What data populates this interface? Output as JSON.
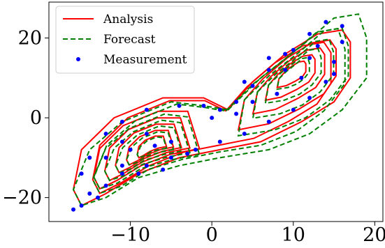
{
  "chart_data": {
    "type": "line",
    "title": "",
    "xlabel": "",
    "ylabel": "",
    "xlim": [
      -20,
      21
    ],
    "ylim": [
      -26,
      29
    ],
    "xticks": [
      -10,
      0,
      10,
      20
    ],
    "yticks": [
      -20,
      0,
      20
    ],
    "xtick_labels": [
      "−10",
      "0",
      "10",
      "20"
    ],
    "ytick_labels": [
      "−20",
      "0",
      "20"
    ],
    "grid": false,
    "legend_position": "top-left",
    "series": [
      {
        "name": "Analysis",
        "style": "solid-line",
        "color": "#ff0000",
        "outer_loop": [
          [
            2,
            2
          ],
          [
            5,
            9
          ],
          [
            9,
            16
          ],
          [
            13,
            21
          ],
          [
            16,
            22
          ],
          [
            17,
            19
          ],
          [
            17,
            10
          ],
          [
            15,
            4
          ],
          [
            11,
            -1
          ],
          [
            6,
            -6
          ],
          [
            1,
            -8
          ],
          [
            -4,
            -10
          ],
          [
            -9,
            -14
          ],
          [
            -13,
            -19
          ],
          [
            -16,
            -22
          ],
          [
            -17,
            -18
          ],
          [
            -16,
            -8
          ],
          [
            -12,
            0
          ],
          [
            -6,
            5
          ],
          [
            -1,
            5
          ],
          [
            2,
            2
          ]
        ]
      },
      {
        "name": "Forecast",
        "style": "dashed-line",
        "color": "#008000",
        "outer_loop": [
          [
            2,
            2
          ],
          [
            6,
            10
          ],
          [
            11,
            18
          ],
          [
            15,
            25
          ],
          [
            18,
            26
          ],
          [
            19,
            20
          ],
          [
            19,
            10
          ],
          [
            16,
            2
          ],
          [
            12,
            -4
          ],
          [
            7,
            -8
          ],
          [
            1,
            -10
          ],
          [
            -4,
            -12
          ],
          [
            -9,
            -15
          ],
          [
            -13,
            -20
          ],
          [
            -16,
            -22
          ],
          [
            -17,
            -18
          ],
          [
            -15,
            -8
          ],
          [
            -11,
            -1
          ],
          [
            -5,
            4
          ],
          [
            -1,
            3
          ],
          [
            2,
            2
          ]
        ]
      },
      {
        "name": "Measurement",
        "style": "markers",
        "color": "#0000ff",
        "points": [
          [
            -17,
            -23
          ],
          [
            -16,
            -22
          ],
          [
            -15,
            -19
          ],
          [
            -16,
            -14
          ],
          [
            -15,
            -10
          ],
          [
            -13,
            -4
          ],
          [
            -11,
            -1
          ],
          [
            -8,
            2
          ],
          [
            -4,
            3
          ],
          [
            -1,
            3
          ],
          [
            1,
            2
          ],
          [
            3,
            4
          ],
          [
            5,
            8
          ],
          [
            7,
            12
          ],
          [
            9,
            16
          ],
          [
            12,
            21
          ],
          [
            14,
            24
          ],
          [
            16,
            23
          ],
          [
            16,
            19
          ],
          [
            15,
            14
          ],
          [
            14,
            9
          ],
          [
            12,
            5
          ],
          [
            10,
            2
          ],
          [
            7,
            -1
          ],
          [
            4,
            -4
          ],
          [
            1,
            -6
          ],
          [
            -2,
            -8
          ],
          [
            -5,
            -10
          ],
          [
            -8,
            -12
          ],
          [
            -11,
            -14
          ],
          [
            -13,
            -17
          ],
          [
            -14,
            -20
          ],
          [
            -13,
            -10
          ],
          [
            -11,
            -6
          ],
          [
            -8,
            -4
          ],
          [
            -5,
            -6
          ],
          [
            -3,
            -9
          ],
          [
            -6,
            -13
          ],
          [
            -9,
            -14
          ],
          [
            -11,
            -12
          ],
          [
            -10,
            -8
          ],
          [
            -7,
            -7
          ],
          [
            4,
            9
          ],
          [
            7,
            15
          ],
          [
            10,
            17
          ],
          [
            12,
            15
          ],
          [
            11,
            10
          ],
          [
            8,
            6
          ],
          [
            5,
            4
          ],
          [
            3,
            1
          ],
          [
            0,
            0
          ],
          [
            9,
            12
          ],
          [
            13,
            18
          ],
          [
            15,
            11
          ]
        ]
      }
    ]
  }
}
